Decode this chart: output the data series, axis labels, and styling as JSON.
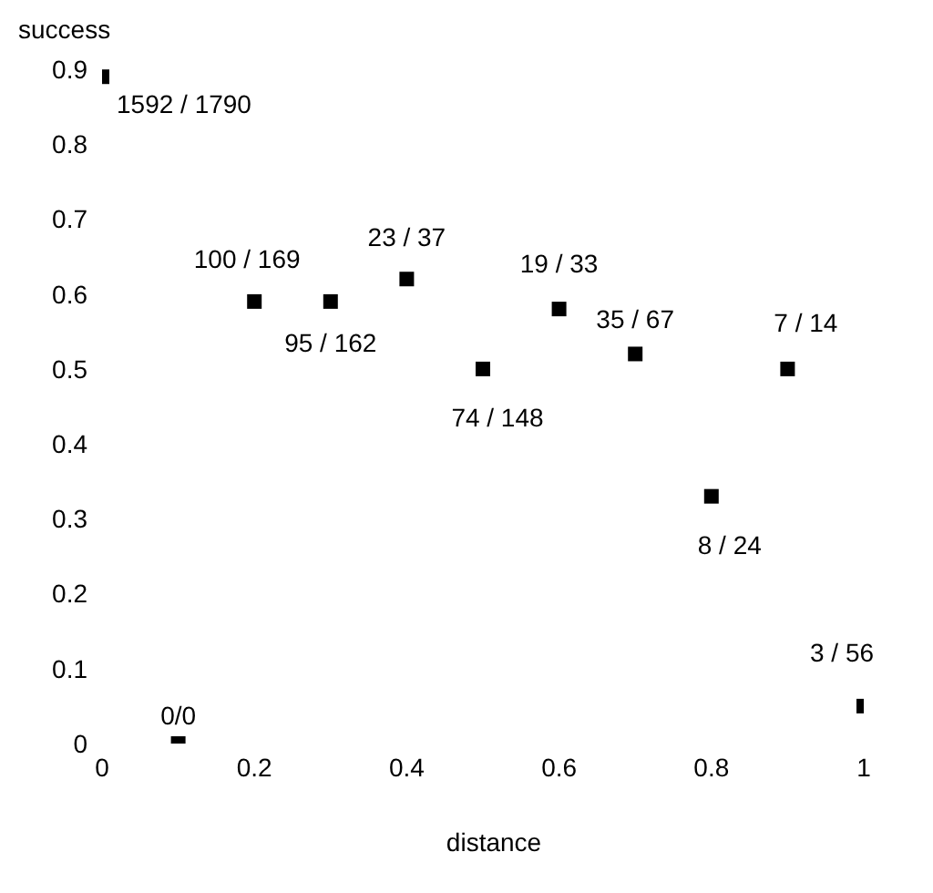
{
  "chart_data": {
    "type": "scatter",
    "xlabel": "distance",
    "ylabel": "success",
    "x": [
      0,
      0.1,
      0.2,
      0.3,
      0.4,
      0.5,
      0.6,
      0.7,
      0.8,
      0.9,
      1
    ],
    "series": [
      {
        "color": "#000000",
        "values": [
          0.89,
          0,
          0.59,
          0.59,
          0.62,
          0.5,
          0.58,
          0.52,
          0.33,
          0.5,
          0.05
        ],
        "value_labels": [
          "1592 / 1790",
          "0/0",
          "100 / 169",
          "95 / 162",
          "23 / 37",
          "74 / 148",
          "19 / 33",
          "35 / 67",
          "8 / 24",
          "7 / 14",
          "3 / 56"
        ]
      }
    ],
    "xlim": [
      0,
      1
    ],
    "xticks": [
      0,
      0.2,
      0.4,
      0.6,
      0.8,
      1
    ],
    "ylim": [
      0,
      0.9
    ],
    "yticks": [
      0,
      0.1,
      0.2,
      0.3,
      0.4,
      0.5,
      0.6,
      0.7,
      0.8,
      0.9
    ],
    "marker": "square"
  }
}
